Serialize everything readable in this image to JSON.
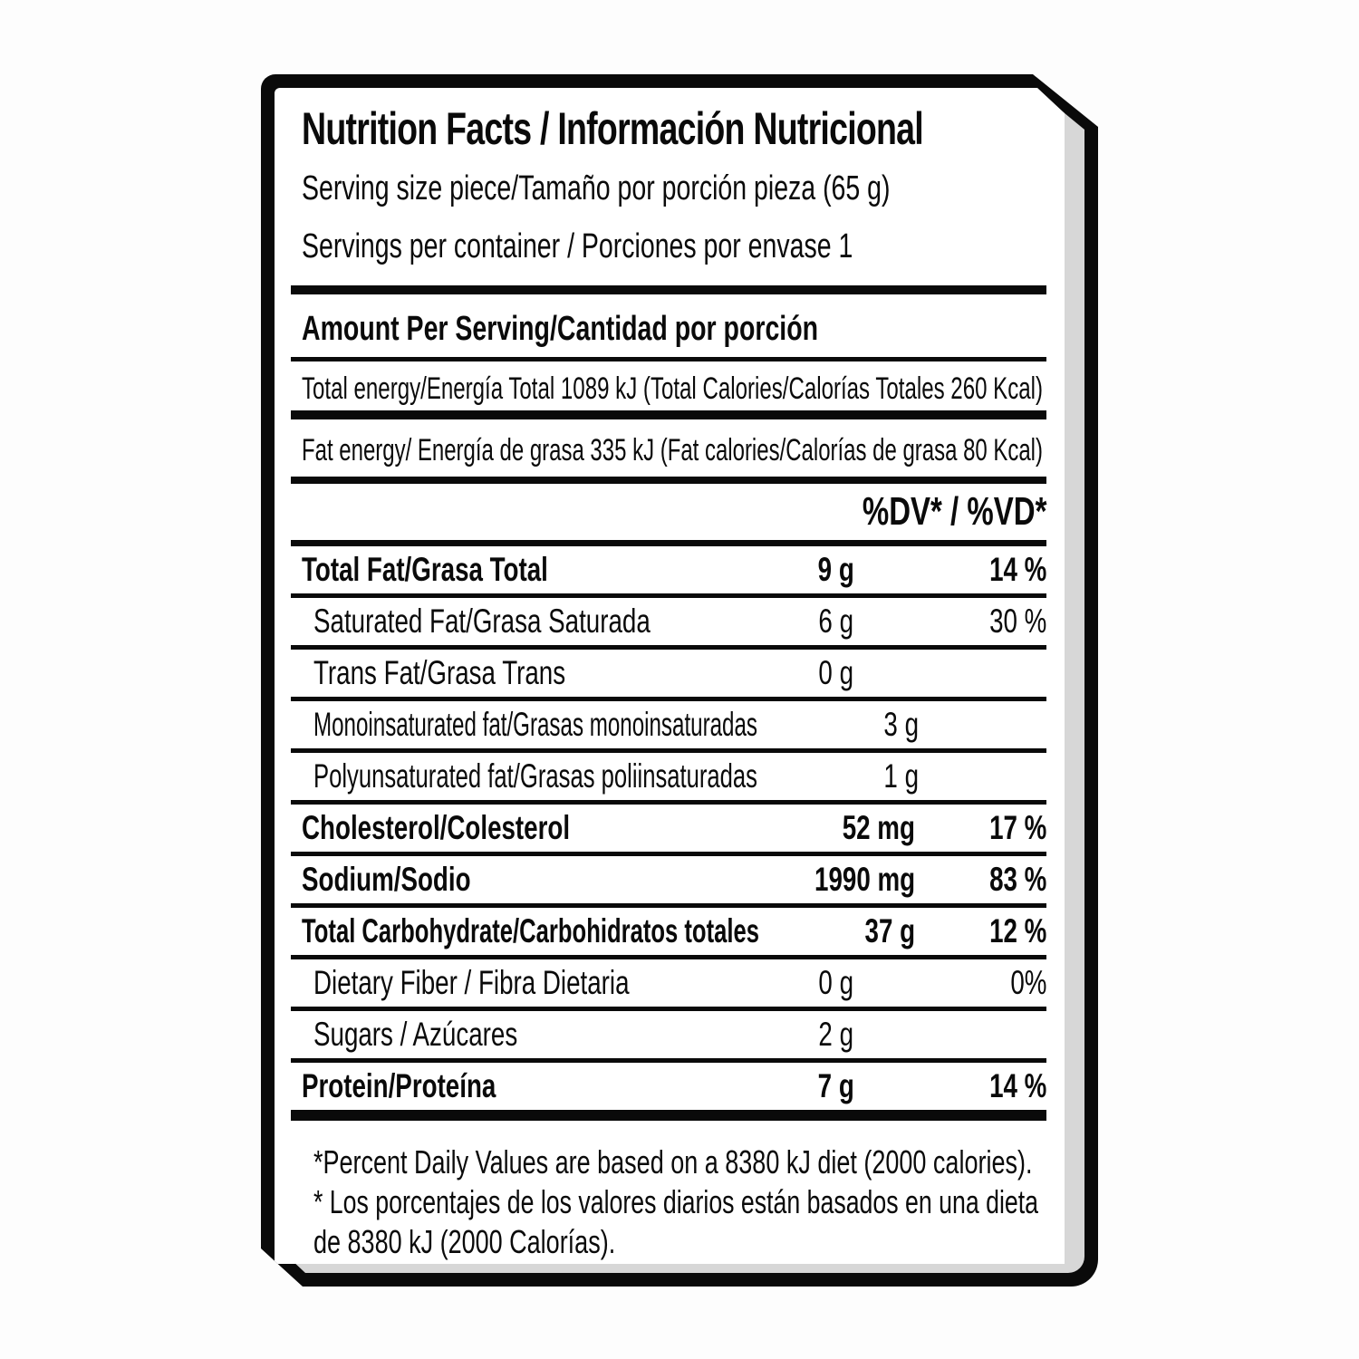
{
  "label": {
    "title": "Nutrition Facts / Información Nutricional",
    "serving_size": "Serving size piece/Tamaño por porción pieza (65 g)",
    "servings_per_container": "Servings per container / Porciones por envase 1",
    "amount_per_serving": "Amount Per Serving/Cantidad por porción",
    "total_energy": "Total energy/Energía Total 1089 kJ (Total Calories/Calorías Totales 260 Kcal)",
    "fat_energy": "Fat energy/ Energía de grasa 335 kJ (Fat calories/Calorías de grasa 80 Kcal)",
    "dv_header": "%DV* / %VD*",
    "rows": [
      {
        "label": "Total Fat/Grasa Total",
        "amount": "9 g",
        "dv": "14 %"
      },
      {
        "label": "Saturated Fat/Grasa Saturada",
        "amount": "6 g",
        "dv": "30 %"
      },
      {
        "label": "Trans Fat/Grasa Trans",
        "amount": "0 g",
        "dv": ""
      },
      {
        "label": "Monoinsaturated fat/Grasas monoinsaturadas",
        "amount": "3 g",
        "dv": ""
      },
      {
        "label": "Polyunsaturated fat/Grasas poliinsaturadas",
        "amount": "1 g",
        "dv": ""
      },
      {
        "label": "Cholesterol/Colesterol",
        "amount": "52 mg",
        "dv": "17 %"
      },
      {
        "label": "Sodium/Sodio",
        "amount": "1990 mg",
        "dv": "83 %"
      },
      {
        "label": "Total Carbohydrate/Carbohidratos totales",
        "amount": "37 g",
        "dv": "12 %"
      },
      {
        "label": "Dietary Fiber / Fibra Dietaria",
        "amount": "0 g",
        "dv": "0%"
      },
      {
        "label": "Sugars / Azúcares",
        "amount": "2 g",
        "dv": ""
      },
      {
        "label": "Protein/Proteína",
        "amount": "7 g",
        "dv": "14 %"
      }
    ],
    "footnotes": [
      "*Percent Daily Values are based on a 8380 kJ diet (2000 calories).",
      "* Los porcentajes de los valores diarios están basados en una dieta",
      "de 8380 kJ (2000 Calorías)."
    ],
    "colors": {
      "ink": "#0a0a0a",
      "background": "#ffffff",
      "shadow": "#d7d7d7"
    }
  }
}
